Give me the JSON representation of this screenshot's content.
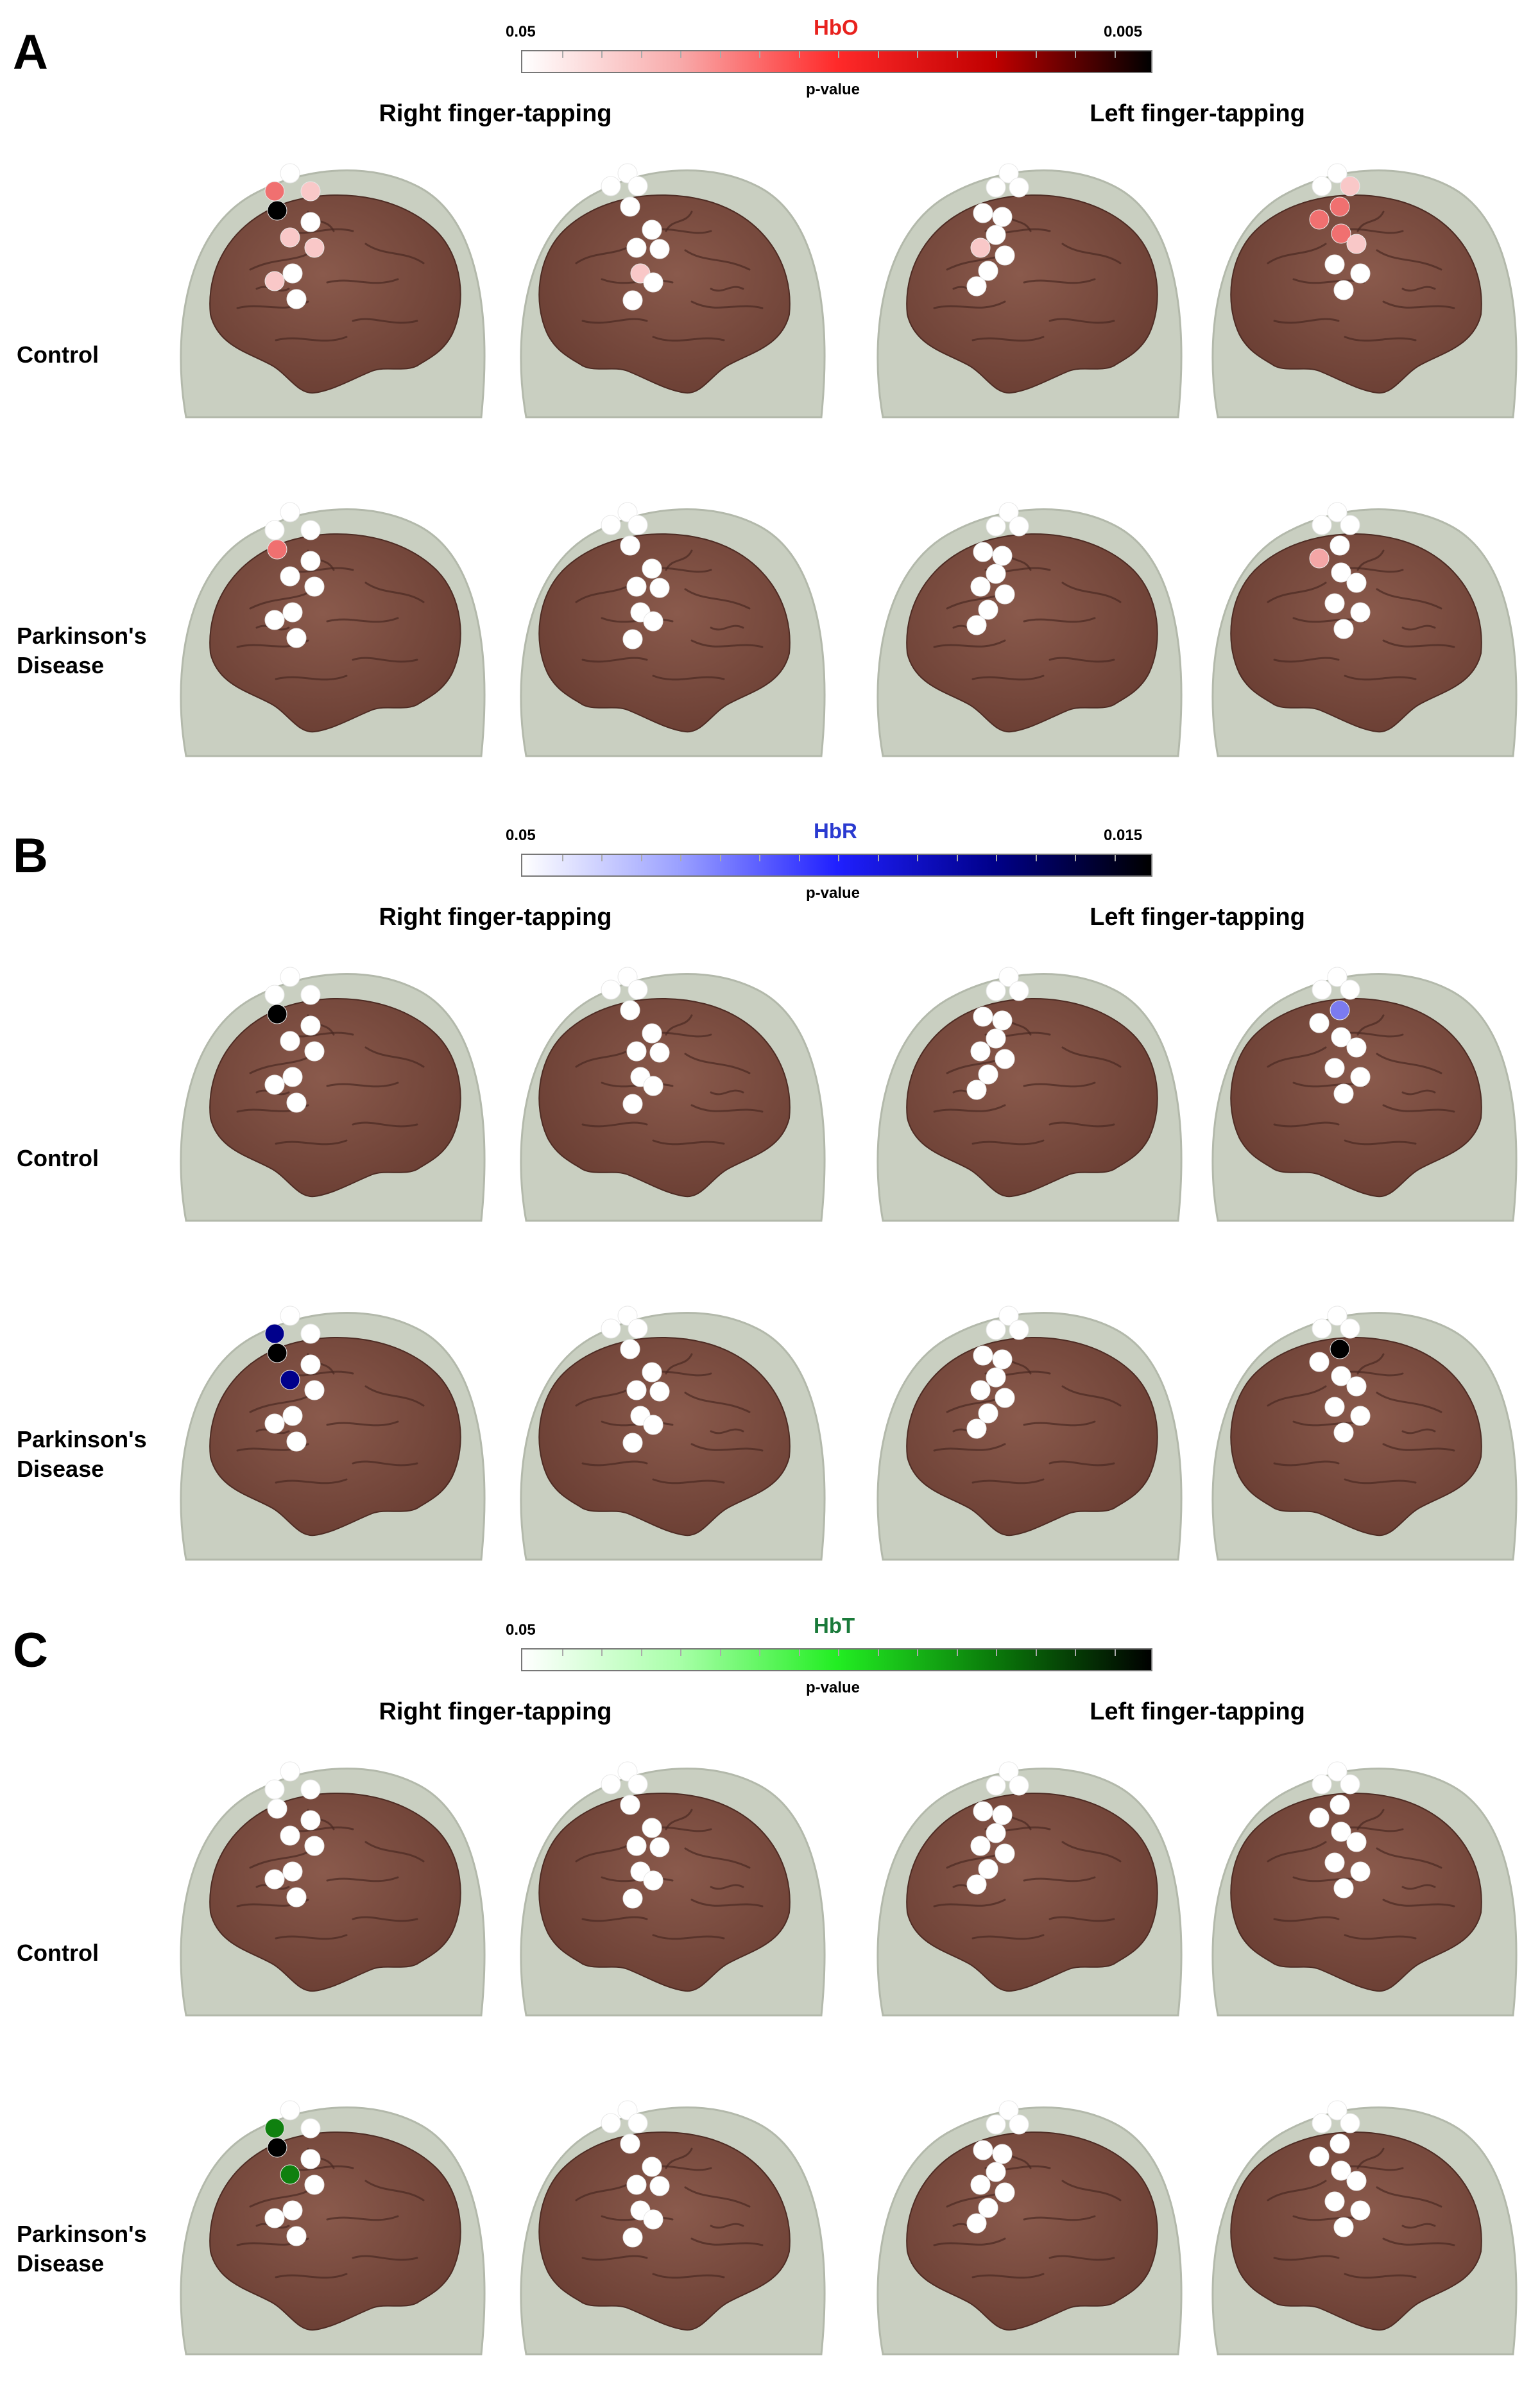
{
  "conditions": [
    "Right finger-tapping",
    "Left finger-tapping"
  ],
  "groups": {
    "control": "Control",
    "pd_line1": "Parkinson's",
    "pd_line2": "Disease"
  },
  "colors": {
    "white": "#ffffff",
    "black": "#000000"
  },
  "panels": [
    {
      "letter": "A",
      "measure": "HbO",
      "title_color": "#e8221e",
      "colorbar": {
        "low_label": "0.05",
        "high_label": "0.005",
        "axis_label": "p-value",
        "gradient": [
          "#ffffff",
          "#f8aaaa",
          "#ff2a2a",
          "#c00000",
          "#000000"
        ]
      },
      "significant": {
        "light": "#f9c8c8",
        "medium": "#f4a6a6",
        "strong": "#f07070",
        "max": "#000000"
      },
      "rows": [
        {
          "group": "control",
          "brains": [
            [
              "white",
              "strong",
              "light",
              "max",
              "light",
              "white",
              "light",
              "white",
              "light",
              "white"
            ],
            [
              "white",
              "white",
              "white",
              "white",
              "white",
              "white",
              "white",
              "light",
              "white",
              "white"
            ],
            [
              "white",
              "white",
              "white",
              "white",
              "white",
              "white",
              "light",
              "white",
              "white",
              "white"
            ],
            [
              "white",
              "white",
              "light",
              "strong",
              "strong",
              "strong",
              "light",
              "white",
              "white",
              "white"
            ]
          ]
        },
        {
          "group": "pd",
          "brains": [
            [
              "white",
              "white",
              "white",
              "strong",
              "white",
              "white",
              "white",
              "white",
              "white",
              "white"
            ],
            [
              "white",
              "white",
              "white",
              "white",
              "white",
              "white",
              "white",
              "white",
              "white",
              "white"
            ],
            [
              "white",
              "white",
              "white",
              "white",
              "white",
              "white",
              "white",
              "white",
              "white",
              "white"
            ],
            [
              "white",
              "white",
              "white",
              "white",
              "medium",
              "white",
              "white",
              "white",
              "white",
              "white"
            ]
          ]
        }
      ]
    },
    {
      "letter": "B",
      "measure": "HbR",
      "title_color": "#2a3ad0",
      "colorbar": {
        "low_label": "0.05",
        "high_label": "0.015",
        "axis_label": "p-value",
        "gradient": [
          "#ffffff",
          "#9aa0ff",
          "#2020ff",
          "#00008a",
          "#000000"
        ]
      },
      "significant": {
        "light": "#c8ccff",
        "medium": "#7b7bf0",
        "strong": "#00008b",
        "max": "#000000"
      },
      "rows": [
        {
          "group": "control",
          "brains": [
            [
              "white",
              "white",
              "white",
              "max",
              "white",
              "white",
              "white",
              "white",
              "white",
              "white"
            ],
            [
              "white",
              "white",
              "white",
              "white",
              "white",
              "white",
              "white",
              "white",
              "white",
              "white"
            ],
            [
              "white",
              "white",
              "white",
              "white",
              "white",
              "white",
              "white",
              "white",
              "white",
              "white"
            ],
            [
              "white",
              "white",
              "white",
              "medium",
              "white",
              "white",
              "white",
              "white",
              "white",
              "white"
            ]
          ]
        },
        {
          "group": "pd",
          "brains": [
            [
              "white",
              "strong",
              "white",
              "max",
              "strong",
              "white",
              "white",
              "white",
              "white",
              "white"
            ],
            [
              "white",
              "white",
              "white",
              "white",
              "white",
              "white",
              "white",
              "white",
              "white",
              "white"
            ],
            [
              "white",
              "white",
              "white",
              "white",
              "white",
              "white",
              "white",
              "white",
              "white",
              "white"
            ],
            [
              "white",
              "white",
              "white",
              "max",
              "white",
              "white",
              "white",
              "white",
              "white",
              "white"
            ]
          ]
        }
      ]
    },
    {
      "letter": "C",
      "measure": "HbT",
      "title_color": "#1a7a3a",
      "colorbar": {
        "low_label": "0.05",
        "high_label": "",
        "axis_label": "p-value",
        "gradient": [
          "#ffffff",
          "#a8ffa8",
          "#22ee22",
          "#0a7a0a",
          "#000000"
        ]
      },
      "significant": {
        "light": "#c8f8c8",
        "medium": "#3cb43c",
        "strong": "#0f800f",
        "max": "#000000"
      },
      "rows": [
        {
          "group": "control",
          "brains": [
            [
              "white",
              "white",
              "white",
              "white",
              "white",
              "white",
              "white",
              "white",
              "white",
              "white"
            ],
            [
              "white",
              "white",
              "white",
              "white",
              "white",
              "white",
              "white",
              "white",
              "white",
              "white"
            ],
            [
              "white",
              "white",
              "white",
              "white",
              "white",
              "white",
              "white",
              "white",
              "white",
              "white"
            ],
            [
              "white",
              "white",
              "white",
              "white",
              "white",
              "white",
              "white",
              "white",
              "white",
              "white"
            ]
          ]
        },
        {
          "group": "pd",
          "brains": [
            [
              "white",
              "strong",
              "white",
              "max",
              "strong",
              "white",
              "white",
              "white",
              "white",
              "white"
            ],
            [
              "white",
              "white",
              "white",
              "white",
              "white",
              "white",
              "white",
              "white",
              "white",
              "white"
            ],
            [
              "white",
              "white",
              "white",
              "white",
              "white",
              "white",
              "white",
              "white",
              "white",
              "white"
            ],
            [
              "white",
              "white",
              "white",
              "white",
              "white",
              "white",
              "white",
              "white",
              "white",
              "white"
            ]
          ]
        }
      ]
    }
  ]
}
